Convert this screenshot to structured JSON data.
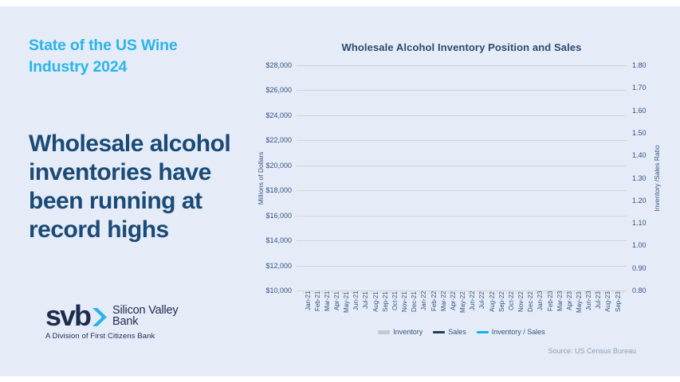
{
  "slide": {
    "kicker_lines": [
      "State of the US Wine",
      "Industry 2024"
    ],
    "headline_lines": [
      "Wholesale alcohol",
      "inventories have",
      "been running at",
      "record highs"
    ]
  },
  "logo": {
    "mark": "svb",
    "chevron_icon": "chevron-right",
    "name_lines": [
      "Silicon Valley",
      "Bank"
    ],
    "tagline": "A Division of First Citizens Bank"
  },
  "chart_data": {
    "type": "combo-bar-line",
    "title": "Wholesale Alcohol Inventory Position and Sales",
    "categories": [
      "Jan-21",
      "Feb-21",
      "Mar-21",
      "Apr-21",
      "May-21",
      "Jun-21",
      "Jul-21",
      "Aug-21",
      "Sep-21",
      "Oct-21",
      "Nov-21",
      "Dec-21",
      "Jan-22",
      "Feb-22",
      "Mar-22",
      "Apr-22",
      "May-22",
      "Jun-22",
      "Jul-22",
      "Aug-22",
      "Sep-22",
      "Oct-22",
      "Nov-22",
      "Dec-22",
      "Jan-23",
      "Feb-23",
      "Mar-23",
      "Apr-23",
      "May-23",
      "Jun-23",
      "Jul-23",
      "Aug-23",
      "Sep-23"
    ],
    "series": [
      {
        "name": "Inventory",
        "type": "bar",
        "axis": "left",
        "color": "#c3cad4",
        "values": []
      },
      {
        "name": "Sales",
        "type": "line",
        "axis": "left",
        "color": "#1f3c63",
        "values": []
      },
      {
        "name": "Inventory / Sales",
        "type": "line",
        "axis": "right",
        "color": "#10b3ee",
        "values": []
      }
    ],
    "plot_area_empty": true,
    "left_axis": {
      "label": "Millions of Dollars",
      "ticks": [
        "$28,000",
        "$26,000",
        "$24,000",
        "$22,000",
        "$20,000",
        "$18,000",
        "$16,000",
        "$14,000",
        "$12,000",
        "$10,000"
      ],
      "min": 10000,
      "max": 28000,
      "step": 2000
    },
    "right_axis": {
      "label": "Inventory /Sales Ratio",
      "ticks": [
        "1.80",
        "1.70",
        "1.60",
        "1.50",
        "1.40",
        "1.30",
        "1.20",
        "1.10",
        "1.00",
        "0.90",
        "0.80"
      ],
      "min": 0.8,
      "max": 1.8,
      "step": 0.1
    },
    "legend_position": "bottom",
    "grid": "horizontal",
    "source": "Source: US Census Bureau"
  },
  "colors": {
    "page_margin": "#ffffff",
    "background": "#e5ecf8",
    "accent_cyan": "#2ab4ea",
    "headline_navy": "#1a4a75",
    "logo_navy": "#1e2b4d",
    "chart_title": "#2c4a70",
    "chart_text": "#35537f",
    "gridline": "#d3d3d3",
    "inventory_swatch": "#c3cad4",
    "sales_line": "#1f3c63",
    "ratio_line": "#10b3ee",
    "source_text": "#8ba0b5"
  }
}
